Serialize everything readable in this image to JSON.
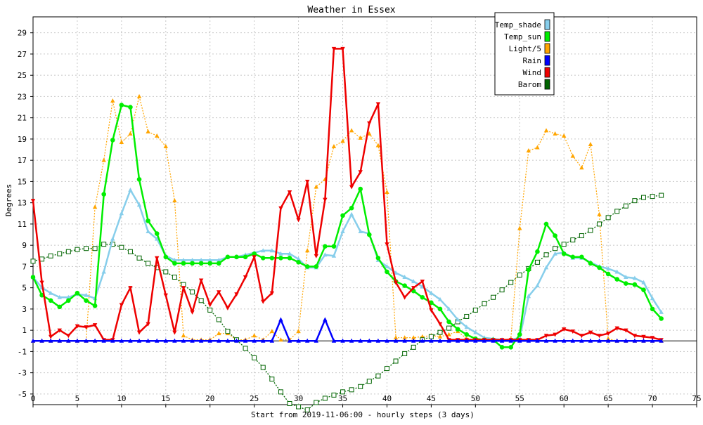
{
  "chart_data": {
    "type": "line",
    "title": "Weather in Essex",
    "xlabel": "Start from 2019-11-06:00 - hourly steps (3 days)",
    "ylabel": "Degrees",
    "xlim": [
      0,
      75
    ],
    "ylim": [
      -6,
      30.5
    ],
    "xticks": [
      0,
      5,
      10,
      15,
      20,
      25,
      30,
      35,
      40,
      45,
      50,
      55,
      60,
      65,
      70,
      75
    ],
    "yticks": [
      -5,
      -3,
      -1,
      1,
      3,
      5,
      7,
      9,
      11,
      13,
      15,
      17,
      19,
      21,
      23,
      25,
      27,
      29
    ],
    "grid": true,
    "legend_position": "top-right",
    "series": [
      {
        "name": "Temp_shade",
        "color": "#87ceeb",
        "marker": "triangle-up",
        "values": [
          6.0,
          5.0,
          4.5,
          4.1,
          4.1,
          4.4,
          4.3,
          4.0,
          6.5,
          9.6,
          12.0,
          14.2,
          12.8,
          10.3,
          9.6,
          8.0,
          7.6,
          7.6,
          7.6,
          7.6,
          7.6,
          7.6,
          7.9,
          7.9,
          8.1,
          8.3,
          8.5,
          8.5,
          8.2,
          8.2,
          7.7,
          6.9,
          6.9,
          8.1,
          8.0,
          10.3,
          11.9,
          10.3,
          10.1,
          7.6,
          7.0,
          6.4,
          6.0,
          5.6,
          5.1,
          4.5,
          3.9,
          3.0,
          2.0,
          1.3,
          0.8,
          0.3,
          0.2,
          0.1,
          0.1,
          0.3,
          4.2,
          5.2,
          6.9,
          8.2,
          8.3,
          7.8,
          7.8,
          7.4,
          7.0,
          6.8,
          6.5,
          6.0,
          5.9,
          5.5,
          4.0,
          2.7
        ]
      },
      {
        "name": "Temp_sun",
        "color": "#00ee00",
        "marker": "circle",
        "values": [
          6.0,
          4.3,
          3.8,
          3.2,
          3.8,
          4.5,
          3.8,
          3.3,
          13.8,
          18.9,
          22.2,
          22.0,
          15.2,
          11.3,
          10.1,
          7.9,
          7.3,
          7.3,
          7.3,
          7.3,
          7.3,
          7.3,
          7.9,
          7.9,
          7.9,
          8.2,
          7.8,
          7.8,
          7.8,
          7.8,
          7.4,
          7.0,
          7.0,
          8.9,
          8.9,
          11.8,
          12.5,
          14.3,
          10.0,
          7.8,
          6.5,
          5.6,
          5.2,
          4.7,
          4.1,
          3.6,
          3.0,
          1.8,
          1.1,
          0.6,
          0.2,
          0.1,
          0.1,
          -0.6,
          -0.6,
          0.6,
          6.7,
          8.4,
          11.0,
          9.9,
          8.2,
          7.9,
          7.9,
          7.3,
          6.9,
          6.3,
          5.8,
          5.4,
          5.3,
          4.8,
          3.0,
          2.1
        ]
      },
      {
        "name": "Light/5",
        "color": "#ffa500",
        "marker": "triangle-up",
        "values": [
          0,
          0,
          0,
          0,
          0,
          0,
          0,
          12.6,
          17.0,
          22.6,
          18.7,
          19.5,
          23.0,
          19.7,
          19.3,
          18.3,
          13.2,
          0.5,
          0.1,
          0.1,
          0.1,
          0.7,
          0.7,
          0.1,
          0.1,
          0.5,
          0.1,
          0.9,
          0.1,
          0.1,
          0.9,
          8.5,
          14.5,
          15.2,
          18.3,
          18.8,
          19.8,
          19.1,
          19.5,
          18.4,
          14.0,
          0.3,
          0.3,
          0.3,
          0.4,
          0.5,
          0.4,
          0.6,
          0.9,
          0.2,
          0.1,
          0.1,
          0.1,
          0.1,
          0.2,
          10.6,
          17.9,
          18.2,
          19.8,
          19.5,
          19.3,
          17.4,
          16.3,
          18.5,
          11.9,
          0.2,
          0,
          0,
          0,
          0,
          0,
          0
        ]
      },
      {
        "name": "Rain",
        "color": "#0000ff",
        "marker": "triangle-up",
        "values": [
          0,
          0,
          0,
          0,
          0,
          0,
          0,
          0,
          0,
          0,
          0,
          0,
          0,
          0,
          0,
          0,
          0,
          0,
          0,
          0,
          0,
          0,
          0,
          0,
          0,
          0,
          0,
          0,
          2.0,
          0,
          0,
          0,
          0,
          2.0,
          0,
          0,
          0,
          0,
          0,
          0,
          0,
          0,
          0,
          0,
          0,
          0,
          0,
          0,
          0,
          0,
          0,
          0,
          0,
          0,
          0,
          0,
          0,
          0,
          0,
          0,
          0,
          0,
          0,
          0,
          0,
          0,
          0,
          0,
          0,
          0,
          0,
          0
        ]
      },
      {
        "name": "Wind",
        "color": "#ee0000",
        "marker": "triangle-down",
        "values": [
          13.2,
          5.5,
          0.4,
          1.0,
          0.5,
          1.4,
          1.3,
          1.5,
          0.1,
          0.1,
          3.4,
          5.0,
          0.8,
          1.6,
          7.8,
          4.3,
          0.8,
          5.0,
          2.7,
          5.7,
          3.4,
          4.6,
          3.1,
          4.4,
          6.0,
          7.9,
          3.7,
          4.5,
          12.5,
          14.0,
          11.4,
          15.0,
          8.0,
          13.3,
          27.5,
          27.5,
          14.5,
          15.9,
          20.5,
          22.3,
          9.1,
          5.5,
          4.1,
          5.0,
          5.6,
          2.9,
          1.6,
          0.1,
          0.1,
          0.1,
          0.1,
          0.1,
          0.1,
          0.1,
          0.1,
          0.1,
          0.1,
          0.1,
          0.5,
          0.6,
          1.1,
          0.9,
          0.5,
          0.8,
          0.5,
          0.7,
          1.2,
          1.0,
          0.5,
          0.4,
          0.3,
          0.1
        ]
      },
      {
        "name": "Barom",
        "color": "#006400",
        "marker": "square-open",
        "values": [
          7.5,
          7.7,
          8.0,
          8.2,
          8.4,
          8.6,
          8.7,
          8.7,
          9.1,
          9.1,
          8.8,
          8.4,
          7.8,
          7.3,
          6.9,
          6.5,
          6.0,
          5.3,
          4.6,
          3.8,
          2.9,
          2.0,
          0.9,
          0.1,
          -0.7,
          -1.6,
          -2.5,
          -3.6,
          -4.8,
          -5.9,
          -6.2,
          -6.5,
          -5.8,
          -5.4,
          -5.1,
          -4.8,
          -4.6,
          -4.3,
          -3.8,
          -3.3,
          -2.6,
          -1.9,
          -1.2,
          -0.6,
          0.1,
          0.4,
          0.8,
          1.2,
          1.8,
          2.3,
          2.9,
          3.5,
          4.1,
          4.8,
          5.5,
          6.2,
          6.8,
          7.4,
          8.1,
          8.7,
          9.1,
          9.5,
          9.9,
          10.4,
          11.0,
          11.6,
          12.2,
          12.7,
          13.2,
          13.5,
          13.6,
          13.7
        ]
      }
    ]
  }
}
